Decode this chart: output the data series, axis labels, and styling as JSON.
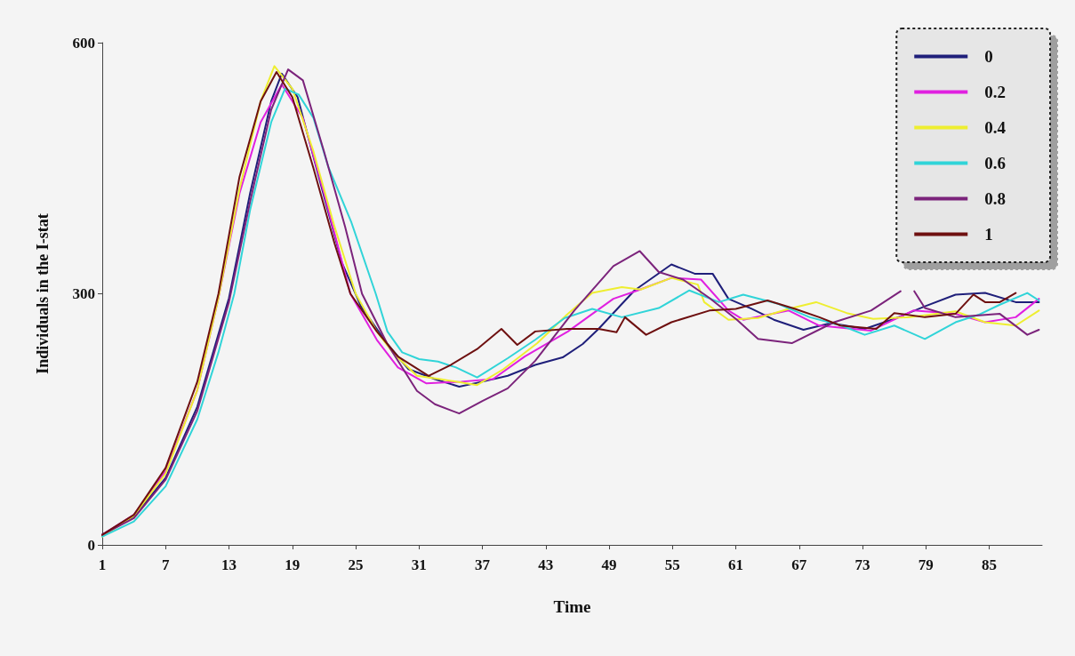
{
  "chart_data": {
    "type": "line",
    "xlabel": "Time",
    "ylabel": "Individuals in the I-stat",
    "xlim": [
      1,
      90
    ],
    "xticks": [
      1,
      7,
      13,
      19,
      25,
      31,
      37,
      43,
      49,
      55,
      61,
      67,
      73,
      79,
      85
    ],
    "ylim": [
      0,
      600
    ],
    "yticks": [
      0,
      300,
      600
    ],
    "grid": false,
    "legend": "top right",
    "marker": "none",
    "line_style": "solid",
    "series": [
      {
        "name": "0",
        "color": "#1f1f7a",
        "x": [
          1,
          4,
          7,
          10,
          13,
          15,
          17,
          18,
          19.5,
          21.5,
          23.7,
          25.5,
          28,
          30,
          32.5,
          34.8,
          37,
          39.4,
          42,
          44.6,
          46.5,
          48,
          51.4,
          54.9,
          57.1,
          58.8,
          60.3,
          62.5,
          64.6,
          67.4,
          70,
          73.2,
          76,
          78.9,
          81.8,
          84.6,
          87.5,
          89.7
        ],
        "values": [
          12,
          34,
          80,
          165,
          295,
          420,
          530,
          563,
          535,
          440,
          337,
          285,
          240,
          210,
          198,
          189,
          195,
          202,
          215,
          224,
          240,
          258,
          304,
          335,
          324,
          324,
          294,
          282,
          269,
          257,
          265,
          258,
          270,
          285,
          299,
          301,
          290,
          290
        ]
      },
      {
        "name": "0.2",
        "color": "#e020e0",
        "x": [
          1,
          4,
          7,
          10,
          12,
          14,
          16,
          18,
          20,
          22,
          24.5,
          27,
          29,
          31.7,
          35,
          38,
          41,
          45.1,
          49.4,
          51.7,
          54.9,
          57.7,
          60.3,
          61.7,
          66,
          68.9,
          73.8,
          77.8,
          81.8,
          84.6,
          87.5,
          89.7
        ],
        "values": [
          12,
          36,
          88,
          185,
          295,
          420,
          505,
          550,
          510,
          420,
          300,
          245,
          212,
          193,
          195,
          198,
          225,
          255,
          294,
          304,
          319,
          317,
          280,
          269,
          280,
          262,
          256,
          280,
          276,
          266,
          272,
          294
        ]
      },
      {
        "name": "0.4",
        "color": "#eeee30",
        "x": [
          1,
          4,
          7,
          10,
          12,
          14,
          16,
          17.3,
          19,
          21,
          23,
          25,
          27,
          28.5,
          30.8,
          33,
          36.5,
          39,
          42.2,
          45,
          47.4,
          50.2,
          52,
          54.9,
          57.4,
          58,
          60.3,
          63.1,
          66,
          68.6,
          71.5,
          74,
          77.5,
          81.8,
          84.6,
          87.5,
          89.7
        ],
        "values": [
          10,
          35,
          85,
          185,
          295,
          425,
          530,
          572,
          545,
          470,
          380,
          300,
          255,
          230,
          202,
          198,
          191,
          210,
          241,
          275,
          301,
          308,
          305,
          319,
          311,
          290,
          269,
          271,
          282,
          290,
          277,
          270,
          272,
          279,
          266,
          262,
          280
        ]
      },
      {
        "name": "0.6",
        "color": "#30d4d8",
        "x": [
          1,
          4,
          7,
          10,
          12,
          13.5,
          15,
          17,
          18.3,
          19.6,
          21,
          22.4,
          24.6,
          26.9,
          28,
          29.4,
          31,
          32.8,
          34.5,
          36.5,
          39.4,
          42,
          44.8,
          47.4,
          50.2,
          53.7,
          56.6,
          59.4,
          61.7,
          65,
          68,
          71,
          73.2,
          76,
          78.9,
          81.8,
          84,
          86,
          88.6,
          89.7
        ],
        "values": [
          10,
          28,
          70,
          150,
          230,
          300,
          400,
          505,
          545,
          538,
          510,
          452,
          385,
          300,
          255,
          230,
          222,
          219,
          212,
          200,
          223,
          245,
          271,
          282,
          272,
          283,
          304,
          290,
          299,
          288,
          272,
          262,
          251,
          262,
          246,
          266,
          275,
          287,
          301,
          292
        ]
      },
      {
        "name": "0.8",
        "color": "#7b237b",
        "x": [
          1,
          4,
          7,
          10,
          13,
          15,
          17,
          18.6,
          20,
          22,
          24,
          25.6,
          28,
          30.8,
          32.5,
          34.8,
          37,
          39.4,
          42,
          45.7,
          49.4,
          51.9,
          53.7,
          56,
          58.5,
          61.1,
          63.1,
          66.3,
          70.3,
          73.8,
          76.6,
          77.3,
          77.9,
          78.9,
          81.8,
          86,
          88.6,
          89.7
        ],
        "values": [
          12,
          32,
          78,
          160,
          290,
          410,
          520,
          568,
          555,
          470,
          380,
          300,
          240,
          184,
          168,
          157,
          172,
          187,
          220,
          280,
          333,
          351,
          326,
          317,
          295,
          269,
          246,
          241,
          266,
          280,
          303,
          null,
          303,
          283,
          272,
          276,
          251,
          257
        ]
      },
      {
        "name": "1",
        "color": "#6e1010",
        "x": [
          1,
          4,
          7,
          10,
          12,
          14,
          16,
          17.5,
          19,
          21,
          23,
          24.5,
          27,
          29,
          31.9,
          34,
          36.5,
          38.8,
          40.3,
          42,
          45,
          48,
          49.7,
          50.5,
          52.5,
          54.9,
          58.5,
          61,
          64,
          66.6,
          68.9,
          70.9,
          74.3,
          76,
          78.9,
          81.8,
          83.5,
          84.6,
          86,
          87.5
        ],
        "values": [
          12,
          36,
          92,
          195,
          300,
          440,
          530,
          565,
          535,
          450,
          360,
          300,
          255,
          225,
          202,
          215,
          234,
          258,
          239,
          255,
          258,
          258,
          254,
          272,
          251,
          266,
          280,
          282,
          292,
          282,
          272,
          262,
          258,
          277,
          272,
          276,
          299,
          290,
          290,
          301
        ]
      }
    ]
  }
}
